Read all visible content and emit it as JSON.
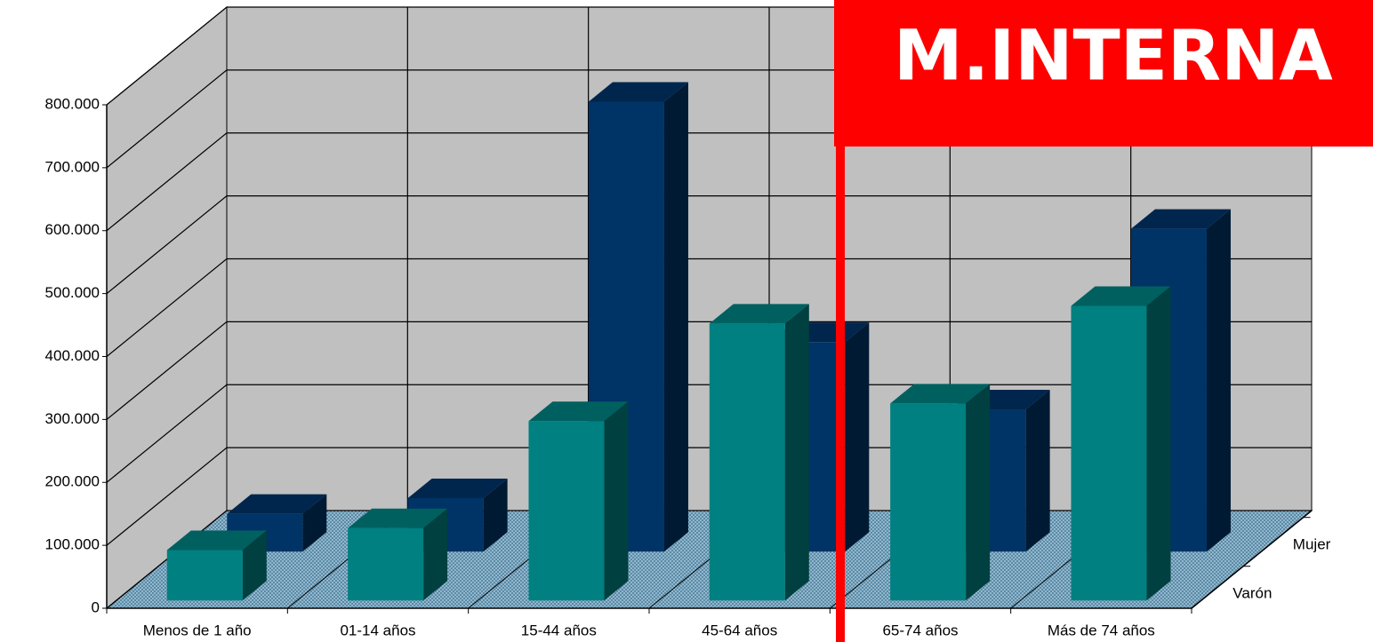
{
  "chart_data": {
    "type": "bar3d",
    "categories": [
      "Menos de 1 año",
      "01-14 años",
      "15-44 años",
      "45-64 años",
      "65-74 años",
      "Más de 74 años"
    ],
    "series": [
      {
        "name": "Varón",
        "color": "#008080",
        "values": [
          80000,
          115000,
          285000,
          440000,
          313000,
          468000
        ]
      },
      {
        "name": "Mujer",
        "color": "#003366",
        "values": [
          60000,
          85000,
          715000,
          333000,
          226000,
          513000
        ]
      }
    ],
    "ylim": [
      0,
      800000
    ],
    "yticks": [
      0,
      {
        "value": 100000,
        "label": "100.000"
      },
      {
        "value": 200000,
        "label": "200.000"
      },
      {
        "value": 300000,
        "label": "300.000"
      },
      {
        "value": 400000,
        "label": "400.000"
      },
      {
        "value": 500000,
        "label": "500.000"
      },
      {
        "value": 600000,
        "label": "600.000"
      },
      {
        "value": 700000,
        "label": "700.000"
      },
      {
        "value": 800000,
        "label": "800.000"
      }
    ],
    "grid": true
  },
  "overlay_label": "M.INTERNA"
}
